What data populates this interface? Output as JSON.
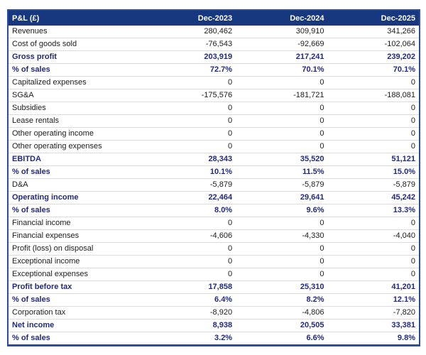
{
  "colors": {
    "header_bg": "#17387F",
    "header_text": "#FFFFFF",
    "outer_border": "#2A4DA0",
    "bold_row_text": "#222A7D",
    "regular_row_text": "#1C1C1C",
    "row_divider": "#DCDCDC",
    "page_bg": "#FFFFFF"
  },
  "chart_data": {
    "type": "table",
    "title": "P&L (£)",
    "columns": [
      "P&L (£)",
      "Dec-2023",
      "Dec-2024",
      "Dec-2025"
    ],
    "rows": [
      {
        "label": "Revenues",
        "bold": false,
        "values": [
          "280,462",
          "309,910",
          "341,266"
        ]
      },
      {
        "label": "Cost of goods sold",
        "bold": false,
        "values": [
          "-76,543",
          "-92,669",
          "-102,064"
        ]
      },
      {
        "label": "Gross profit",
        "bold": true,
        "values": [
          "203,919",
          "217,241",
          "239,202"
        ]
      },
      {
        "label": "% of sales",
        "bold": true,
        "values": [
          "72.7%",
          "70.1%",
          "70.1%"
        ]
      },
      {
        "label": "Capitalized expenses",
        "bold": false,
        "values": [
          "0",
          "0",
          "0"
        ]
      },
      {
        "label": "SG&A",
        "bold": false,
        "values": [
          "-175,576",
          "-181,721",
          "-188,081"
        ]
      },
      {
        "label": "Subsidies",
        "bold": false,
        "values": [
          "0",
          "0",
          "0"
        ]
      },
      {
        "label": "Lease rentals",
        "bold": false,
        "values": [
          "0",
          "0",
          "0"
        ]
      },
      {
        "label": "Other operating income",
        "bold": false,
        "values": [
          "0",
          "0",
          "0"
        ]
      },
      {
        "label": "Other operating expenses",
        "bold": false,
        "values": [
          "0",
          "0",
          "0"
        ]
      },
      {
        "label": "EBITDA",
        "bold": true,
        "values": [
          "28,343",
          "35,520",
          "51,121"
        ]
      },
      {
        "label": "% of sales",
        "bold": true,
        "values": [
          "10.1%",
          "11.5%",
          "15.0%"
        ]
      },
      {
        "label": "D&A",
        "bold": false,
        "values": [
          "-5,879",
          "-5,879",
          "-5,879"
        ]
      },
      {
        "label": "Operating income",
        "bold": true,
        "values": [
          "22,464",
          "29,641",
          "45,242"
        ]
      },
      {
        "label": "% of sales",
        "bold": true,
        "values": [
          "8.0%",
          "9.6%",
          "13.3%"
        ]
      },
      {
        "label": "Financial income",
        "bold": false,
        "values": [
          "0",
          "0",
          "0"
        ]
      },
      {
        "label": "Financial expenses",
        "bold": false,
        "values": [
          "-4,606",
          "-4,330",
          "-4,040"
        ]
      },
      {
        "label": "Profit (loss) on disposal",
        "bold": false,
        "values": [
          "0",
          "0",
          "0"
        ]
      },
      {
        "label": "Exceptional income",
        "bold": false,
        "values": [
          "0",
          "0",
          "0"
        ]
      },
      {
        "label": "Exceptional expenses",
        "bold": false,
        "values": [
          "0",
          "0",
          "0"
        ]
      },
      {
        "label": "Profit before tax",
        "bold": true,
        "values": [
          "17,858",
          "25,310",
          "41,201"
        ]
      },
      {
        "label": "% of sales",
        "bold": true,
        "values": [
          "6.4%",
          "8.2%",
          "12.1%"
        ]
      },
      {
        "label": "Corporation tax",
        "bold": false,
        "values": [
          "-8,920",
          "-4,806",
          "-7,820"
        ]
      },
      {
        "label": "Net income",
        "bold": true,
        "values": [
          "8,938",
          "20,505",
          "33,381"
        ]
      },
      {
        "label": "% of sales",
        "bold": true,
        "values": [
          "3.2%",
          "6.6%",
          "9.8%"
        ]
      }
    ]
  }
}
